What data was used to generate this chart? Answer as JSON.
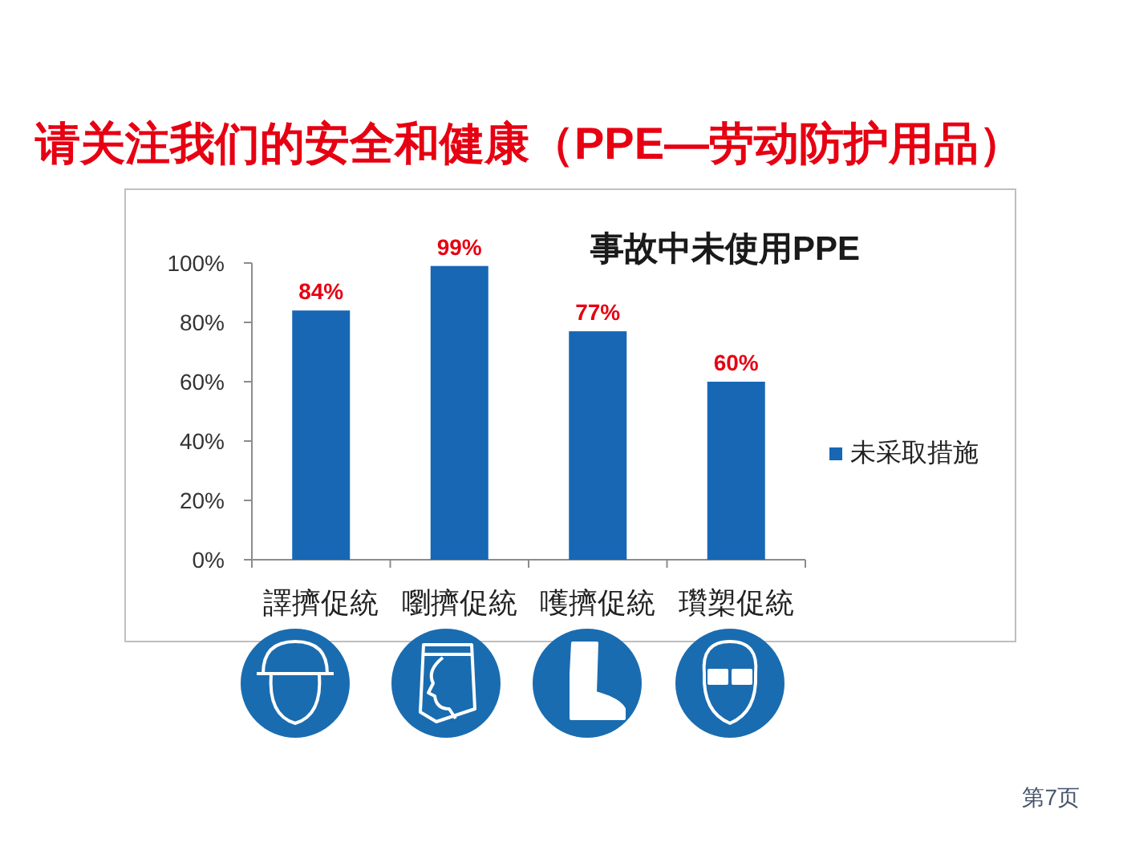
{
  "chart_data": {
    "type": "bar",
    "title": "请关注我们的安全和健康（PPE—劳动防护用品）",
    "subtitle": "事故中未使用PPE",
    "categories": [
      "譯擠促統",
      "嚠擠促統",
      "嚄擠促統",
      "瓚槊促統"
    ],
    "series": [
      {
        "name": "未采取措施",
        "color": "#1767b5",
        "values": [
          84,
          99,
          77,
          60
        ],
        "value_labels": [
          "84%",
          "99%",
          "77%",
          "60%"
        ]
      }
    ],
    "ylim": [
      0,
      100
    ],
    "yticks": [
      {
        "value": 0,
        "label": "0%"
      },
      {
        "value": 20,
        "label": "20%"
      },
      {
        "value": 40,
        "label": "40%"
      },
      {
        "value": 60,
        "label": "60%"
      },
      {
        "value": 80,
        "label": "80%"
      },
      {
        "value": 100,
        "label": "100%"
      }
    ],
    "legend": "right",
    "annotations": [
      "第7页"
    ]
  }
}
